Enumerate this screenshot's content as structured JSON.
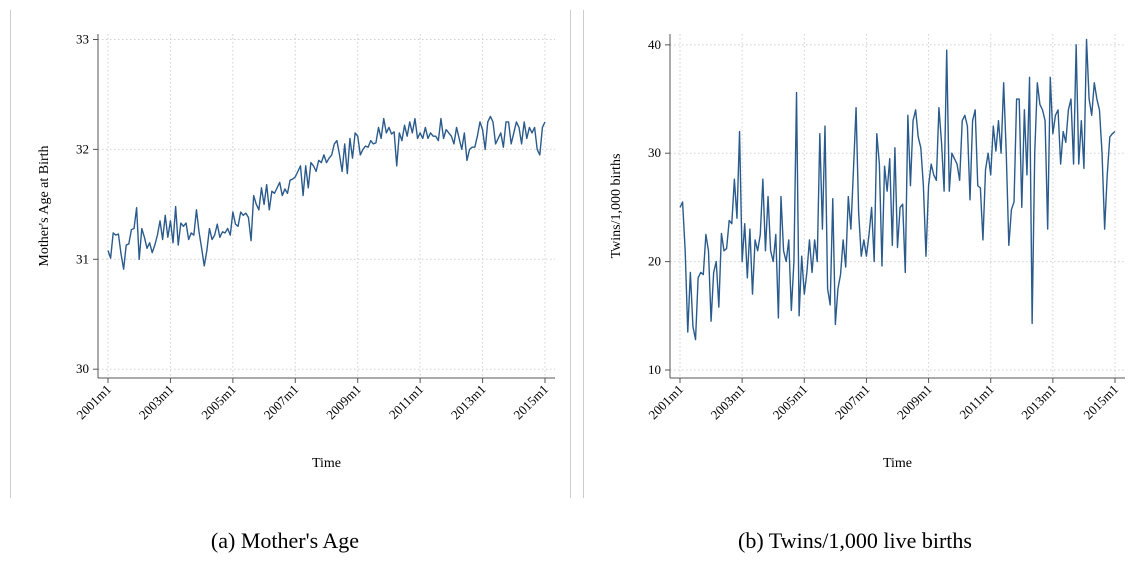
{
  "chart_data": [
    {
      "type": "line",
      "caption": "(a) Mother's Age",
      "x_label": "Time",
      "y_label": "Mother's Age at Birth",
      "grid": true,
      "categories": [
        "2001m1",
        null,
        null,
        null,
        null,
        null,
        null,
        null,
        null,
        null,
        null,
        null,
        null,
        null,
        null,
        null,
        null,
        null,
        null,
        null,
        null,
        null,
        null,
        null,
        "2003m1",
        null,
        null,
        null,
        null,
        null,
        null,
        null,
        null,
        null,
        null,
        null,
        null,
        null,
        null,
        null,
        null,
        null,
        null,
        null,
        null,
        null,
        null,
        null,
        "2005m1",
        null,
        null,
        null,
        null,
        null,
        null,
        null,
        null,
        null,
        null,
        null,
        null,
        null,
        null,
        null,
        null,
        null,
        null,
        null,
        null,
        null,
        null,
        null,
        "2007m1",
        null,
        null,
        null,
        null,
        null,
        null,
        null,
        null,
        null,
        null,
        null,
        null,
        null,
        null,
        null,
        null,
        null,
        null,
        null,
        null,
        null,
        null,
        null,
        "2009m1",
        null,
        null,
        null,
        null,
        null,
        null,
        null,
        null,
        null,
        null,
        null,
        null,
        null,
        null,
        null,
        null,
        null,
        null,
        null,
        null,
        null,
        null,
        null,
        "2011m1",
        null,
        null,
        null,
        null,
        null,
        null,
        null,
        null,
        null,
        null,
        null,
        null,
        null,
        null,
        null,
        null,
        null,
        null,
        null,
        null,
        null,
        null,
        null,
        "2013m1",
        null,
        null,
        null,
        null,
        null,
        null,
        null,
        null,
        null,
        null,
        null,
        null,
        null,
        null,
        null,
        null,
        null,
        null,
        null,
        null,
        null,
        null,
        null,
        "2015m1"
      ],
      "series": [
        {
          "name": "Mother's Age at Birth",
          "color": "#2a5b8c",
          "values": [
            31.08,
            31.01,
            31.24,
            31.22,
            31.23,
            31.05,
            30.91,
            31.13,
            31.14,
            31.27,
            31.28,
            31.47,
            31.0,
            31.28,
            31.2,
            31.1,
            31.15,
            31.06,
            31.13,
            31.22,
            31.35,
            31.18,
            31.4,
            31.2,
            31.35,
            31.15,
            31.48,
            31.13,
            31.33,
            31.3,
            31.33,
            31.18,
            31.24,
            31.22,
            31.45,
            31.25,
            31.1,
            30.94,
            31.08,
            31.28,
            31.18,
            31.22,
            31.32,
            31.2,
            31.25,
            31.24,
            31.28,
            31.22,
            31.43,
            31.32,
            31.3,
            31.43,
            31.4,
            31.42,
            31.38,
            31.17,
            31.58,
            31.5,
            31.45,
            31.65,
            31.5,
            31.68,
            31.45,
            31.62,
            31.6,
            31.65,
            31.7,
            31.58,
            31.64,
            31.6,
            31.72,
            31.73,
            31.75,
            31.8,
            31.85,
            31.58,
            31.85,
            31.65,
            31.88,
            31.85,
            31.8,
            31.9,
            31.88,
            31.95,
            31.88,
            31.92,
            31.95,
            32.05,
            32.08,
            31.95,
            31.8,
            32.05,
            31.78,
            32.1,
            31.92,
            32.15,
            32.12,
            31.95,
            32.0,
            32.03,
            32.02,
            32.08,
            32.05,
            32.06,
            32.2,
            32.1,
            32.28,
            32.15,
            32.2,
            32.14,
            32.16,
            31.85,
            32.15,
            32.08,
            32.22,
            32.12,
            32.25,
            32.15,
            32.28,
            32.1,
            32.15,
            32.1,
            32.2,
            32.1,
            32.15,
            32.12,
            32.12,
            32.08,
            32.28,
            32.1,
            32.18,
            32.15,
            32.12,
            32.05,
            32.2,
            32.1,
            32.0,
            32.15,
            31.9,
            32.0,
            32.02,
            32.02,
            32.12,
            32.25,
            32.18,
            32.0,
            32.25,
            32.3,
            32.25,
            32.05,
            32.1,
            32.15,
            32.02,
            32.25,
            32.25,
            32.05,
            32.15,
            32.25,
            32.2,
            32.05,
            32.25,
            32.1,
            32.2,
            32.15,
            32.2,
            32.0,
            31.95,
            32.2,
            32.25
          ]
        }
      ],
      "ylim": [
        29.92,
        33.05
      ],
      "yticks": [
        30,
        31,
        32,
        33
      ]
    },
    {
      "type": "line",
      "caption": "(b) Twins/1,000 live births",
      "x_label": "Time",
      "y_label": "Twins/1,000 births",
      "grid": true,
      "categories": [
        "2001m1",
        null,
        null,
        null,
        null,
        null,
        null,
        null,
        null,
        null,
        null,
        null,
        null,
        null,
        null,
        null,
        null,
        null,
        null,
        null,
        null,
        null,
        null,
        null,
        "2003m1",
        null,
        null,
        null,
        null,
        null,
        null,
        null,
        null,
        null,
        null,
        null,
        null,
        null,
        null,
        null,
        null,
        null,
        null,
        null,
        null,
        null,
        null,
        null,
        "2005m1",
        null,
        null,
        null,
        null,
        null,
        null,
        null,
        null,
        null,
        null,
        null,
        null,
        null,
        null,
        null,
        null,
        null,
        null,
        null,
        null,
        null,
        null,
        null,
        "2007m1",
        null,
        null,
        null,
        null,
        null,
        null,
        null,
        null,
        null,
        null,
        null,
        null,
        null,
        null,
        null,
        null,
        null,
        null,
        null,
        null,
        null,
        null,
        null,
        "2009m1",
        null,
        null,
        null,
        null,
        null,
        null,
        null,
        null,
        null,
        null,
        null,
        null,
        null,
        null,
        null,
        null,
        null,
        null,
        null,
        null,
        null,
        null,
        null,
        "2011m1",
        null,
        null,
        null,
        null,
        null,
        null,
        null,
        null,
        null,
        null,
        null,
        null,
        null,
        null,
        null,
        null,
        null,
        null,
        null,
        null,
        null,
        null,
        null,
        "2013m1",
        null,
        null,
        null,
        null,
        null,
        null,
        null,
        null,
        null,
        null,
        null,
        null,
        null,
        null,
        null,
        null,
        null,
        null,
        null,
        null,
        null,
        null,
        null,
        "2015m1"
      ],
      "series": [
        {
          "name": "Twins/1,000 births",
          "color": "#2a5b8c",
          "values": [
            25,
            25.5,
            21,
            13.5,
            19,
            14,
            12.8,
            18.5,
            19,
            18.8,
            22.5,
            21,
            14.5,
            19,
            20,
            15.8,
            22.6,
            21,
            21.2,
            23.8,
            23.5,
            27.6,
            24,
            32,
            20,
            23.5,
            18.5,
            23,
            17,
            22,
            21,
            22.5,
            27.6,
            21,
            26,
            21,
            20,
            22.5,
            14.8,
            26,
            21,
            20,
            22,
            15.5,
            20,
            35.6,
            15,
            20.5,
            17,
            19,
            22,
            19,
            22,
            20,
            31.8,
            23,
            32.5,
            17.5,
            16,
            25.8,
            14.2,
            17.5,
            18.8,
            22,
            19.5,
            26,
            23,
            28.5,
            34.2,
            24.5,
            20.5,
            22,
            20.5,
            22.5,
            25,
            20,
            31.8,
            29,
            19.6,
            28.8,
            26.5,
            29.5,
            21.5,
            30.5,
            21.3,
            25,
            25.3,
            19,
            33.5,
            27,
            33,
            34,
            31.5,
            30.5,
            27,
            20.5,
            27,
            29,
            28,
            27.5,
            34.2,
            31,
            26.5,
            39.5,
            26.5,
            30,
            29.5,
            29,
            27.5,
            33,
            33.5,
            32.5,
            25.7,
            33,
            34,
            27,
            26.8,
            22,
            28.5,
            30,
            28,
            32.5,
            30.2,
            33,
            30,
            36.5,
            30,
            21.5,
            24.8,
            25.5,
            35,
            35,
            25,
            34,
            28,
            37,
            14.3,
            30,
            36.5,
            34.5,
            34,
            33,
            23,
            37,
            31.8,
            33.5,
            34,
            29,
            32,
            31,
            34,
            35,
            29,
            40,
            29,
            33,
            28.6,
            40.5,
            35,
            33.5,
            36.5,
            35,
            34,
            30,
            23,
            28,
            31.5,
            31.8,
            32
          ]
        }
      ],
      "ylim": [
        9.26,
        41
      ],
      "yticks": [
        10,
        20,
        30,
        40
      ]
    }
  ]
}
